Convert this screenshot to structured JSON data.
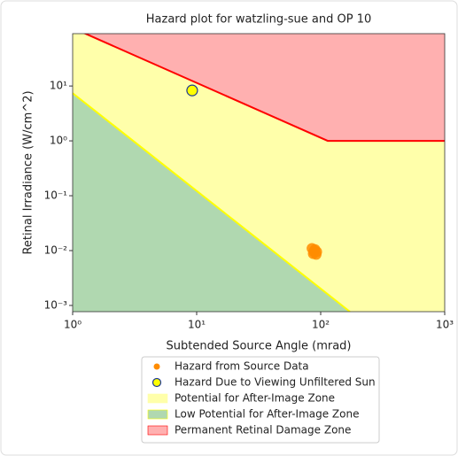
{
  "chart_data": {
    "type": "scatter",
    "title": "Hazard plot for watzling-sue and OP 10",
    "xlabel": "Subtended Source Angle (mrad)",
    "ylabel": "Retinal Irradiance (W/cm^2)",
    "xscale": "log",
    "yscale": "log",
    "xlim": [
      1,
      1000
    ],
    "ylim": [
      0.00077,
      90
    ],
    "xticks": [
      {
        "value": 1,
        "label": "10⁰"
      },
      {
        "value": 10,
        "label": "10¹"
      },
      {
        "value": 100,
        "label": "10²"
      },
      {
        "value": 1000,
        "label": "10³"
      }
    ],
    "yticks": [
      {
        "value": 0.001,
        "label": "10⁻³"
      },
      {
        "value": 0.01,
        "label": "10⁻²"
      },
      {
        "value": 0.1,
        "label": "10⁻¹"
      },
      {
        "value": 1,
        "label": "10⁰"
      },
      {
        "value": 10,
        "label": "10¹"
      }
    ],
    "series": [
      {
        "name": "Hazard from Source Data",
        "color": "#ff8c00",
        "x": [
          85,
          88,
          90,
          92,
          87,
          93,
          89
        ],
        "values": [
          0.011,
          0.0095,
          0.0105,
          0.0085,
          0.0088,
          0.0095,
          0.01
        ]
      },
      {
        "name": "Hazard Due to Viewing Unfiltered Sun",
        "color": "#ffff00",
        "edge_color": "#1f3a93",
        "x": [
          9.2
        ],
        "values": [
          8.3
        ]
      }
    ],
    "zones": [
      {
        "name": "Potential for After-Image Zone",
        "color": "#ffffaa"
      },
      {
        "name": "Low Potential for After-Image Zone",
        "color": "#b0d8b0",
        "line_color": "#ffff00",
        "x": [
          1,
          172
        ],
        "values": [
          7.4,
          0.00077
        ]
      },
      {
        "name": "Permanent Retinal Damage Zone",
        "color": "#ffb0b0",
        "line_color": "#ff0000",
        "x": [
          1,
          114,
          1000
        ],
        "values": [
          114,
          1,
          1
        ]
      }
    ],
    "legend": "lower center"
  }
}
